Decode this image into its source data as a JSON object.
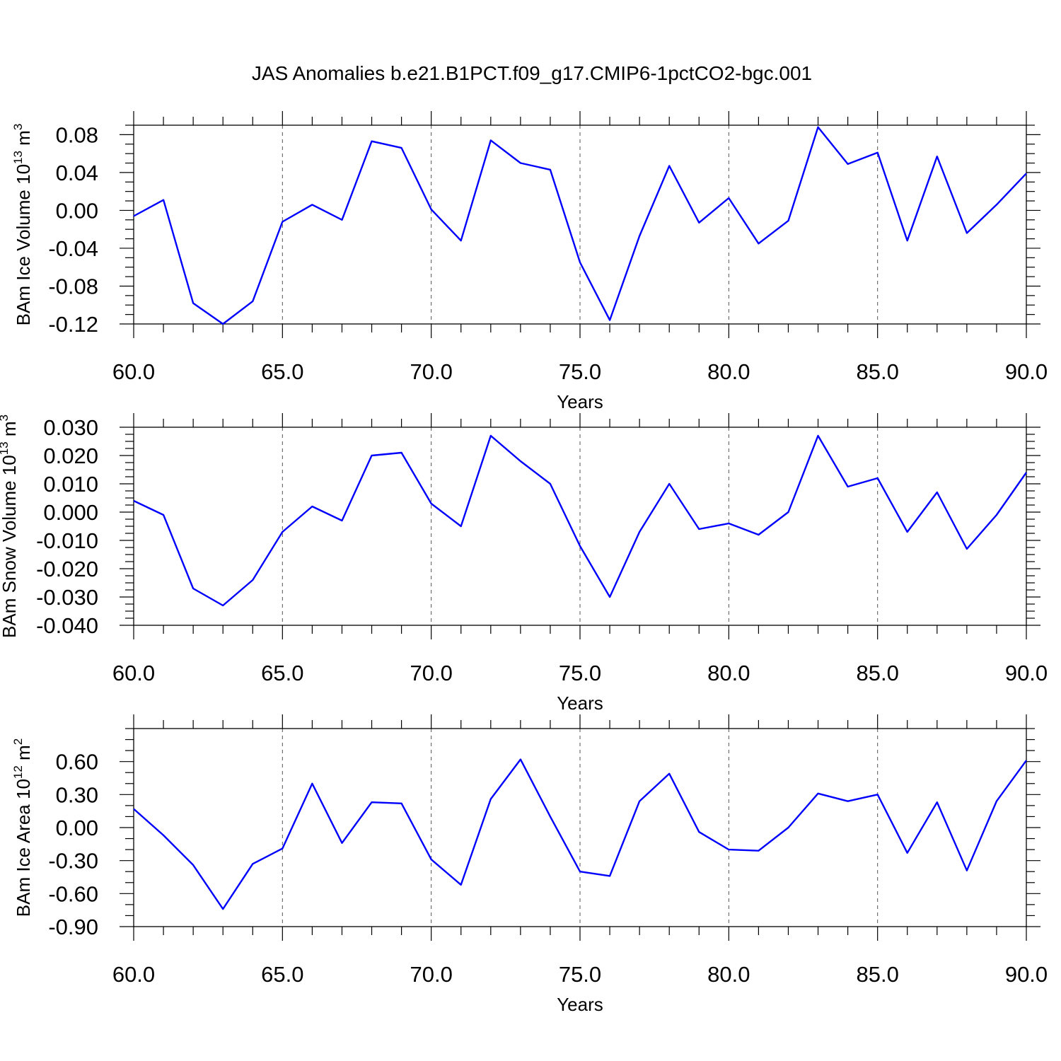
{
  "title": "JAS Anomalies b.e21.B1PCT.f09_g17.CMIP6-1pctCO2-bgc.001",
  "colors": {
    "series": "#0000ff",
    "grid": "#555555"
  },
  "chart_data": [
    {
      "type": "line",
      "ylabel": "BAm Ice Volume 10",
      "ylabel_exp": "13",
      "ylabel_unit": " m",
      "ylabel_unit_exp": "3",
      "xlabel": "Years",
      "xlim": [
        60,
        90
      ],
      "ylim": [
        -0.12,
        0.09
      ],
      "xticks": [
        60,
        65,
        70,
        75,
        80,
        85,
        90
      ],
      "xtick_labels": [
        "60.0",
        "65.0",
        "70.0",
        "75.0",
        "80.0",
        "85.0",
        "90.0"
      ],
      "yticks": [
        -0.12,
        -0.08,
        -0.04,
        0.0,
        0.04,
        0.08
      ],
      "ytick_labels": [
        "-0.12",
        "-0.08",
        "-0.04",
        "0.00",
        "0.04",
        "0.08"
      ],
      "yminor_step": 0.01,
      "grid": "vertical-dashed",
      "x": [
        60,
        61,
        62,
        63,
        64,
        65,
        66,
        67,
        68,
        69,
        70,
        71,
        72,
        73,
        74,
        75,
        76,
        77,
        78,
        79,
        80,
        81,
        82,
        83,
        84,
        85,
        86,
        87,
        88,
        89,
        90
      ],
      "values": [
        -0.006,
        0.011,
        -0.098,
        -0.12,
        -0.096,
        -0.012,
        0.006,
        -0.01,
        0.073,
        0.066,
        0.001,
        -0.032,
        0.074,
        0.05,
        0.043,
        -0.055,
        -0.116,
        -0.027,
        0.047,
        -0.013,
        0.013,
        -0.035,
        -0.011,
        0.088,
        0.049,
        0.061,
        -0.032,
        0.057,
        -0.024,
        0.006,
        0.039
      ]
    },
    {
      "type": "line",
      "ylabel": "BAm Snow Volume 10",
      "ylabel_exp": "13",
      "ylabel_unit": " m",
      "ylabel_unit_exp": "3",
      "xlabel": "Years",
      "xlim": [
        60,
        90
      ],
      "ylim": [
        -0.04,
        0.03
      ],
      "xticks": [
        60,
        65,
        70,
        75,
        80,
        85,
        90
      ],
      "xtick_labels": [
        "60.0",
        "65.0",
        "70.0",
        "75.0",
        "80.0",
        "85.0",
        "90.0"
      ],
      "yticks": [
        -0.04,
        -0.03,
        -0.02,
        -0.01,
        0.0,
        0.01,
        0.02,
        0.03
      ],
      "ytick_labels": [
        "-0.040",
        "-0.030",
        "-0.020",
        "-0.010",
        "0.000",
        "0.010",
        "0.020",
        "0.030"
      ],
      "yminor_step": 0.0025,
      "grid": "vertical-dashed",
      "x": [
        60,
        61,
        62,
        63,
        64,
        65,
        66,
        67,
        68,
        69,
        70,
        71,
        72,
        73,
        74,
        75,
        76,
        77,
        78,
        79,
        80,
        81,
        82,
        83,
        84,
        85,
        86,
        87,
        88,
        89,
        90
      ],
      "values": [
        0.004,
        -0.001,
        -0.027,
        -0.033,
        -0.024,
        -0.007,
        0.002,
        -0.003,
        0.02,
        0.021,
        0.003,
        -0.005,
        0.027,
        0.018,
        0.01,
        -0.012,
        -0.03,
        -0.007,
        0.01,
        -0.006,
        -0.004,
        -0.008,
        0.0,
        0.027,
        0.009,
        0.012,
        -0.007,
        0.007,
        -0.013,
        -0.001,
        0.014
      ]
    },
    {
      "type": "line",
      "ylabel": "BAm Ice Area 10",
      "ylabel_exp": "12",
      "ylabel_unit": " m",
      "ylabel_unit_exp": "2",
      "xlabel": "Years",
      "xlim": [
        60,
        90
      ],
      "ylim": [
        -0.9,
        0.9
      ],
      "xticks": [
        60,
        65,
        70,
        75,
        80,
        85,
        90
      ],
      "xtick_labels": [
        "60.0",
        "65.0",
        "70.0",
        "75.0",
        "80.0",
        "85.0",
        "90.0"
      ],
      "yticks": [
        -0.9,
        -0.6,
        -0.3,
        0.0,
        0.3,
        0.6
      ],
      "ytick_labels": [
        "-0.90",
        "-0.60",
        "-0.30",
        "0.00",
        "0.30",
        "0.60"
      ],
      "yminor_step": 0.1,
      "grid": "vertical-dashed",
      "x": [
        60,
        61,
        62,
        63,
        64,
        65,
        66,
        67,
        68,
        69,
        70,
        71,
        72,
        73,
        74,
        75,
        76,
        77,
        78,
        79,
        80,
        81,
        82,
        83,
        84,
        85,
        86,
        87,
        88,
        89,
        90
      ],
      "values": [
        0.17,
        -0.07,
        -0.34,
        -0.74,
        -0.33,
        -0.19,
        0.4,
        -0.14,
        0.23,
        0.22,
        -0.29,
        -0.52,
        0.26,
        0.62,
        0.1,
        -0.4,
        -0.44,
        0.24,
        0.49,
        -0.04,
        -0.2,
        -0.21,
        0.0,
        0.31,
        0.24,
        0.3,
        -0.23,
        0.23,
        -0.39,
        0.24,
        0.61
      ]
    }
  ]
}
